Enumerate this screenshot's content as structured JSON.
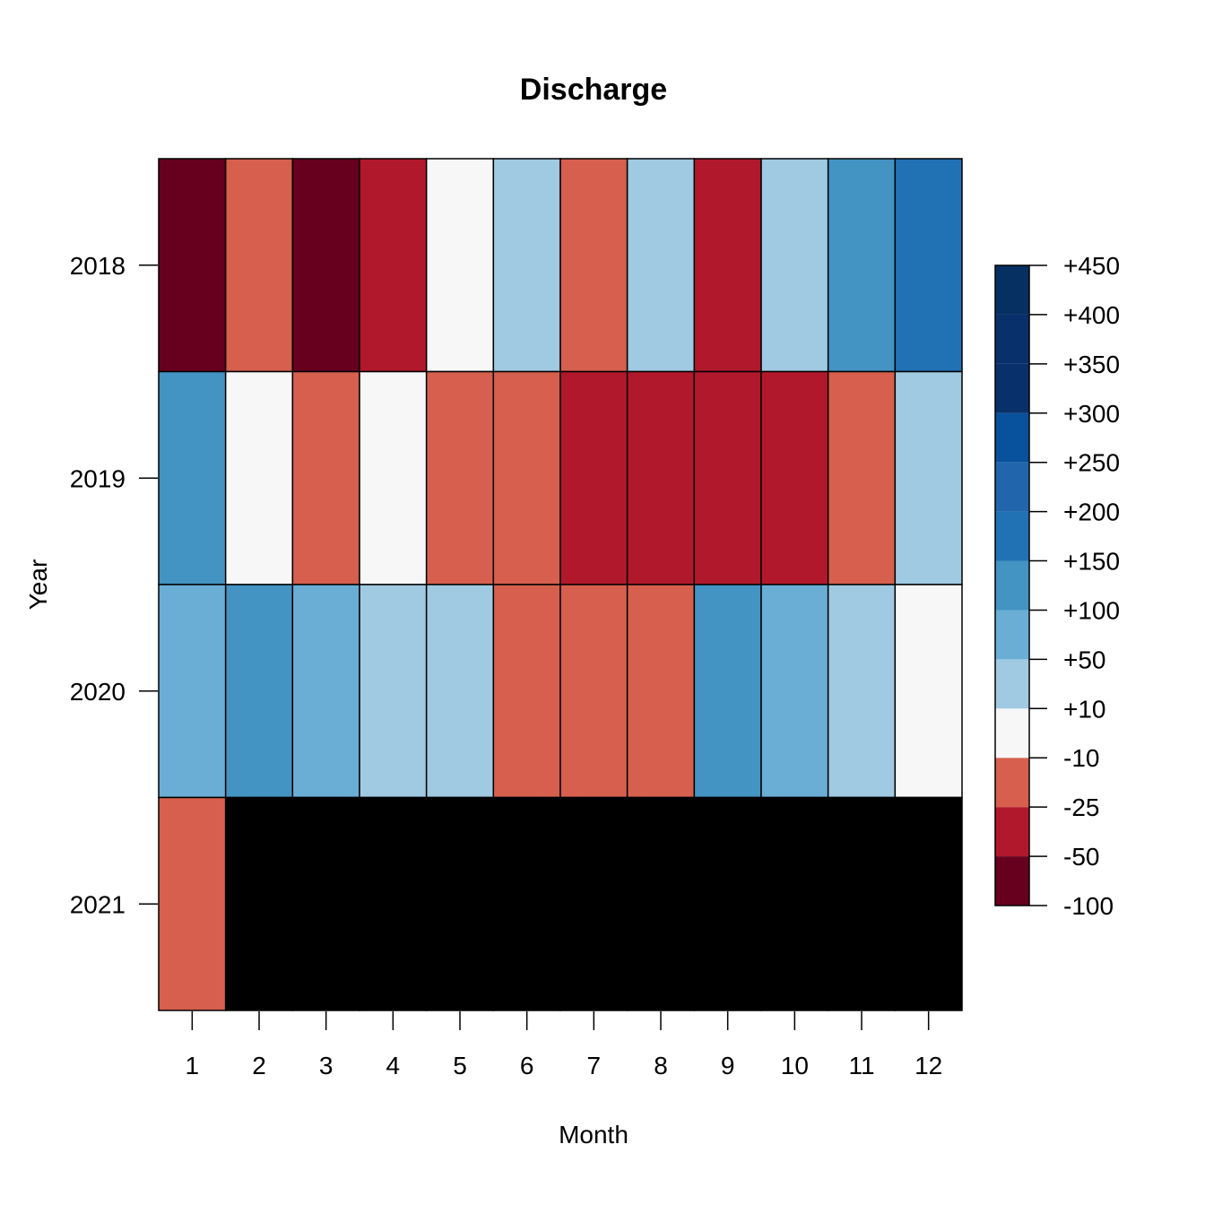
{
  "chart_data": {
    "type": "heatmap",
    "title": "Discharge",
    "xlabel": "Month",
    "ylabel": "Year",
    "x_categories": [
      "1",
      "2",
      "3",
      "4",
      "5",
      "6",
      "7",
      "8",
      "9",
      "10",
      "11",
      "12"
    ],
    "y_categories": [
      "2018",
      "2019",
      "2020",
      "2021"
    ],
    "grid": false,
    "legend_position": "right",
    "legend": {
      "labels": [
        "-100",
        "-50",
        "-25",
        "-10",
        "+10",
        "+50",
        "+100",
        "+150",
        "+200",
        "+250",
        "+300",
        "+350",
        "+400",
        "+450"
      ],
      "colors": [
        "#67001f",
        "#b2182b",
        "#d6604d",
        "#f7f7f7",
        "#a0cae2",
        "#6aaed6",
        "#4393c3",
        "#2171b5",
        "#2166ac",
        "#08519c",
        "#08306b",
        "#08306b",
        "#053061"
      ]
    },
    "class_colors": {
      "le_-50": "#67001f",
      "-50_-25": "#b2182b",
      "-25_-10": "#d6604d",
      "-10_+10": "#f7f7f7",
      "+10_+50": "#a0cae2",
      "+50_+100": "#6aaed6",
      "+100_+150": "#4393c3",
      "+150_+200": "#2171b5",
      "no_data": "#000000"
    },
    "rows": [
      {
        "year": "2018",
        "classes": [
          "le_-50",
          "-25_-10",
          "le_-50",
          "-50_-25",
          "-10_+10",
          "+10_+50",
          "-25_-10",
          "+10_+50",
          "-50_-25",
          "+10_+50",
          "+100_+150",
          "+150_+200"
        ]
      },
      {
        "year": "2019",
        "classes": [
          "+100_+150",
          "-10_+10",
          "-25_-10",
          "-10_+10",
          "-25_-10",
          "-25_-10",
          "-50_-25",
          "-50_-25",
          "-50_-25",
          "-50_-25",
          "-25_-10",
          "+10_+50"
        ]
      },
      {
        "year": "2020",
        "classes": [
          "+50_+100",
          "+100_+150",
          "+50_+100",
          "+10_+50",
          "+10_+50",
          "-25_-10",
          "-25_-10",
          "-25_-10",
          "+100_+150",
          "+50_+100",
          "+10_+50",
          "-10_+10"
        ]
      },
      {
        "year": "2021",
        "classes": [
          "-25_-10",
          "no_data",
          "no_data",
          "no_data",
          "no_data",
          "no_data",
          "no_data",
          "no_data",
          "no_data",
          "no_data",
          "no_data",
          "no_data"
        ]
      }
    ]
  }
}
